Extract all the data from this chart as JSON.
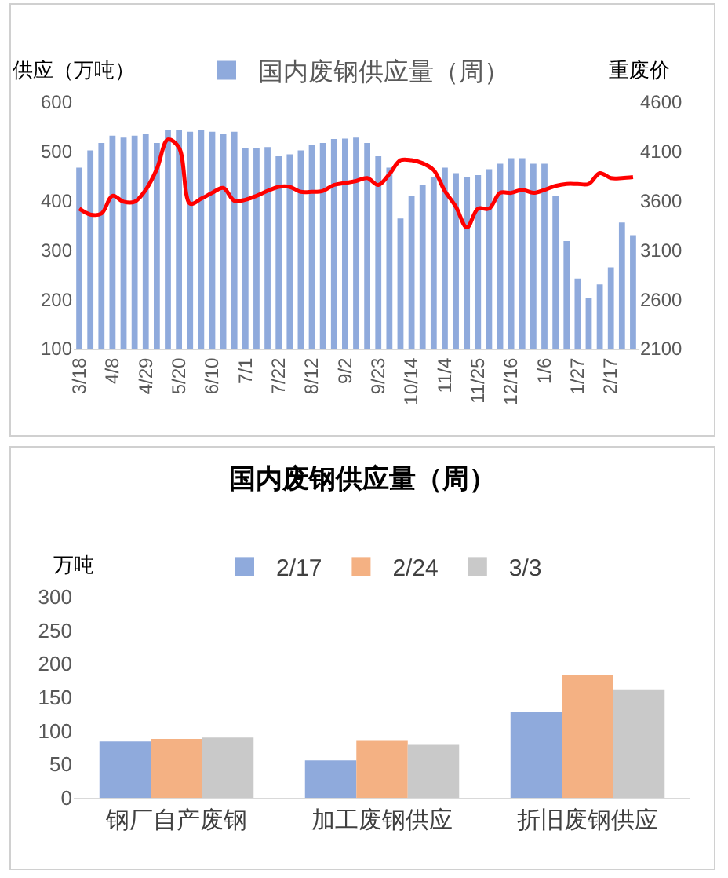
{
  "chart_data": [
    {
      "type": "bar",
      "categories": [
        "3/18",
        null,
        null,
        "4/8",
        null,
        null,
        "4/29",
        null,
        null,
        "5/20",
        null,
        null,
        "6/10",
        null,
        null,
        "7/1",
        null,
        null,
        "7/22",
        null,
        null,
        "8/12",
        null,
        null,
        "9/2",
        null,
        null,
        "9/23",
        null,
        null,
        "10/14",
        null,
        null,
        "11/4",
        null,
        null,
        "11/25",
        null,
        null,
        "12/16",
        null,
        null,
        "1/6",
        null,
        null,
        "1/27",
        null,
        null,
        "2/17",
        null,
        null
      ],
      "series": [
        {
          "name": "国内废钢供应量（周）",
          "color": "#8faadc",
          "values": [
            467,
            502,
            517,
            532,
            528,
            532,
            536,
            517,
            544,
            544,
            540,
            544,
            540,
            536,
            540,
            506,
            506,
            509,
            490,
            494,
            502,
            513,
            517,
            525,
            526,
            528,
            517,
            490,
            467,
            364,
            410,
            433,
            448,
            467,
            456,
            448,
            452,
            464,
            475,
            486,
            486,
            475,
            475,
            410,
            318,
            242,
            203,
            230,
            265,
            356,
            330
          ]
        },
        {
          "type": "line",
          "axis": "y2",
          "color": "#ff0000",
          "values": [
            3520,
            3460,
            3470,
            3650,
            3590,
            3590,
            3710,
            3920,
            4220,
            4140,
            3570,
            3620,
            3680,
            3730,
            3600,
            3610,
            3650,
            3700,
            3740,
            3740,
            3690,
            3690,
            3700,
            3760,
            3780,
            3800,
            3830,
            3760,
            3870,
            4010,
            4010,
            3980,
            3910,
            3700,
            3540,
            3330,
            3520,
            3520,
            3680,
            3680,
            3710,
            3680,
            3710,
            3750,
            3770,
            3770,
            3770,
            3880,
            3830,
            3830,
            3840
          ]
        }
      ],
      "ylabel": "供应（万吨）",
      "y2label": "重废价",
      "ylim": [
        100,
        600
      ],
      "yticks": [
        100,
        200,
        300,
        400,
        500,
        600
      ],
      "y2lim": [
        2100,
        4600
      ],
      "y2ticks": [
        2100,
        2600,
        3100,
        3600,
        4100,
        4600
      ],
      "legend": "top"
    },
    {
      "type": "bar",
      "title": "国内废钢供应量（周）",
      "ylabel": "万吨",
      "categories": [
        "钢厂自产废钢",
        "加工废钢供应",
        "折旧废钢供应"
      ],
      "series": [
        {
          "name": "2/17",
          "color": "#8faadc",
          "values": [
            84,
            56,
            128
          ]
        },
        {
          "name": "2/24",
          "color": "#f4b183",
          "values": [
            88,
            86,
            183
          ]
        },
        {
          "name": "3/3",
          "color": "#c9c9c9",
          "values": [
            90,
            79,
            162
          ]
        }
      ],
      "ylim": [
        0,
        300
      ],
      "yticks": [
        0,
        50,
        100,
        150,
        200,
        250,
        300
      ],
      "legend": "top"
    }
  ]
}
